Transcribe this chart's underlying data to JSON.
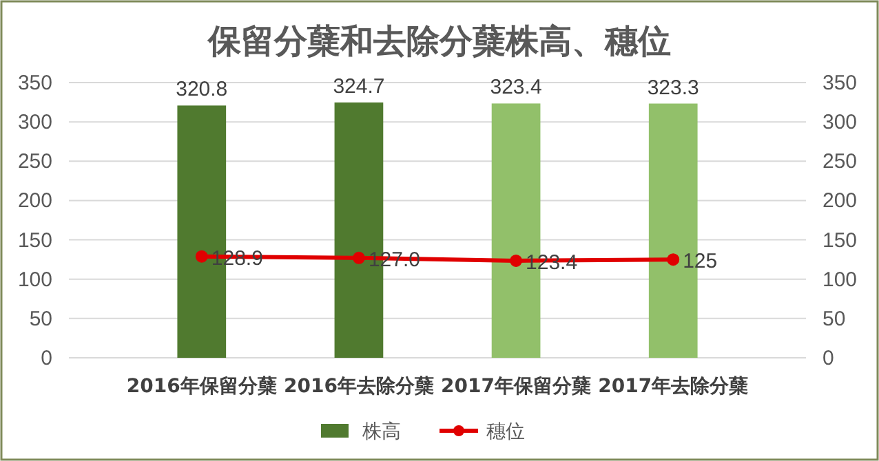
{
  "chart_data": {
    "type": "bar",
    "title": "保留分蘖和去除分蘖株高、穗位",
    "categories": [
      "2016年保留分蘖",
      "2016年去除分蘖",
      "2017年保留分蘖",
      "2017年去除分蘖"
    ],
    "series": [
      {
        "name": "株高",
        "color": "#507a2f",
        "colors": [
          "#507a2f",
          "#507a2f",
          "#92c06a",
          "#92c06a"
        ],
        "values": [
          320.8,
          324.7,
          323.4,
          323.3
        ]
      },
      {
        "name": "穗位",
        "type": "line",
        "color": "#e00000",
        "values": [
          128.9,
          127.0,
          123.4,
          125
        ],
        "value_labels": [
          "128.9",
          "127.0",
          "123.4",
          "125"
        ],
        "marker": "circle"
      }
    ],
    "ylim": [
      0,
      350
    ],
    "yticks": [
      0,
      50,
      100,
      150,
      200,
      250,
      300,
      350
    ],
    "y2lim": [
      0,
      350
    ],
    "y2ticks": [
      0,
      50,
      100,
      150,
      200,
      250,
      300,
      350
    ],
    "grid": "y",
    "legend": "bottom",
    "data_labels": true
  }
}
